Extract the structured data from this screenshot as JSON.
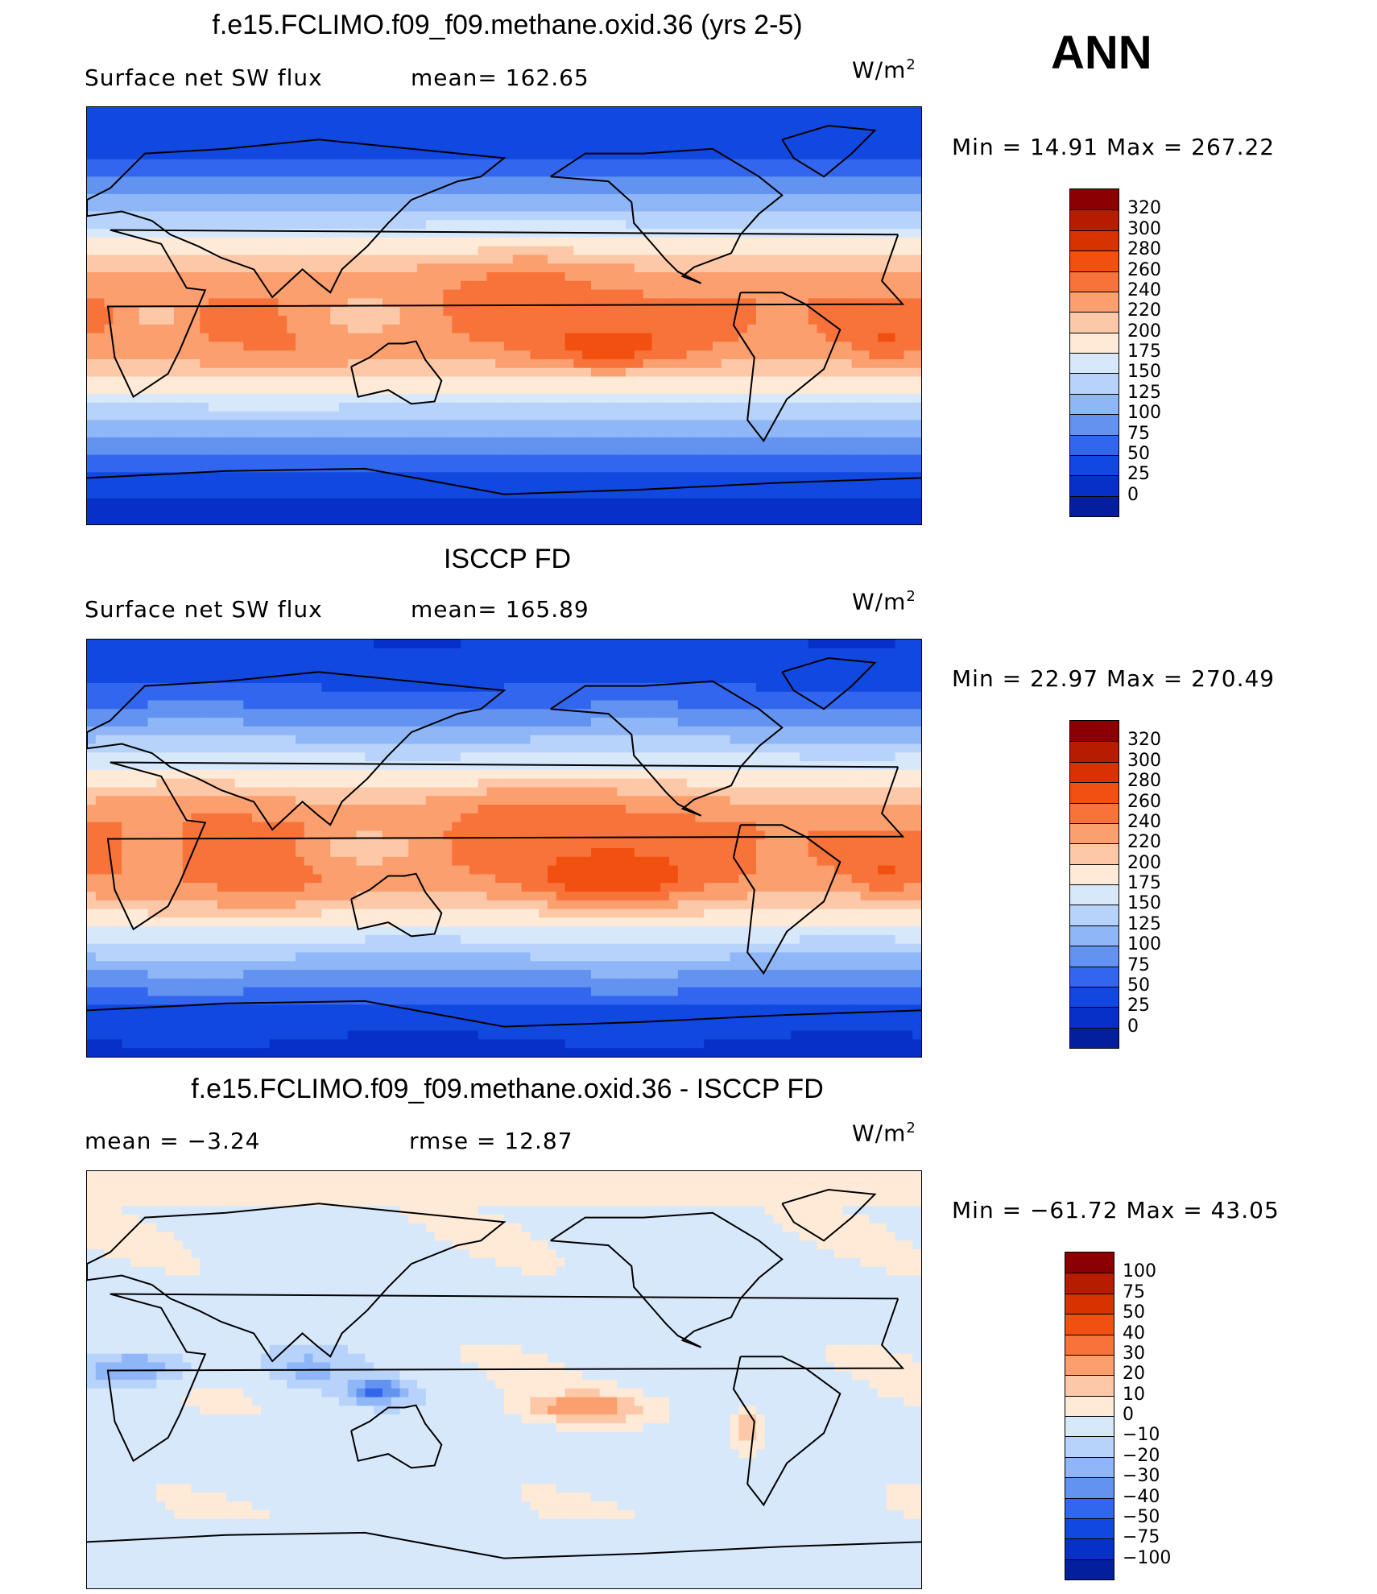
{
  "season": "ANN",
  "panels": [
    {
      "title": "f.e15.FCLIMO.f09_f09.methane.oxid.36 (yrs 2-5)",
      "left_label": "Surface  net  SW  flux",
      "middle_label": "mean=  162.65",
      "units": "W/m",
      "units_sup": "2",
      "minmax": "Min  =    14.91  Max  =  267.22",
      "field": "model",
      "colorbar": {
        "labels": [
          "320",
          "300",
          "280",
          "260",
          "240",
          "220",
          "200",
          "175",
          "150",
          "125",
          "100",
          "75",
          "50",
          "25",
          "0"
        ],
        "colors": [
          "#8b0000",
          "#b71c00",
          "#d83200",
          "#f25010",
          "#f8733a",
          "#fb9f6e",
          "#fdc8a8",
          "#feead6",
          "#d8e8fb",
          "#b7d3fb",
          "#8fb6f7",
          "#6293f0",
          "#3366ee",
          "#1148e0",
          "#0630c8",
          "#041f9c"
        ]
      }
    },
    {
      "title": "ISCCP FD",
      "left_label": "Surface  net  SW  flux",
      "middle_label": "mean=  165.89",
      "units": "W/m",
      "units_sup": "2",
      "minmax": "Min  =    22.97  Max  =  270.49",
      "field": "obs",
      "colorbar": {
        "labels": [
          "320",
          "300",
          "280",
          "260",
          "240",
          "220",
          "200",
          "175",
          "150",
          "125",
          "100",
          "75",
          "50",
          "25",
          "0"
        ],
        "colors": [
          "#8b0000",
          "#b71c00",
          "#d83200",
          "#f25010",
          "#f8733a",
          "#fb9f6e",
          "#fdc8a8",
          "#feead6",
          "#d8e8fb",
          "#b7d3fb",
          "#8fb6f7",
          "#6293f0",
          "#3366ee",
          "#1148e0",
          "#0630c8",
          "#041f9c"
        ]
      }
    },
    {
      "title": "f.e15.FCLIMO.f09_f09.methane.oxid.36 - ISCCP FD",
      "left_label": "mean  =    −3.24",
      "middle_label": "rmse  =    12.87",
      "units": "W/m",
      "units_sup": "2",
      "minmax": "Min  =  −61.72  Max  =    43.05",
      "field": "diff",
      "colorbar": {
        "labels": [
          "100",
          "75",
          "50",
          "40",
          "30",
          "20",
          "10",
          "0",
          "−10",
          "−20",
          "−30",
          "−40",
          "−50",
          "−75",
          "−100"
        ],
        "colors": [
          "#8b0000",
          "#b71c00",
          "#d83200",
          "#f25010",
          "#f8733a",
          "#fb9f6e",
          "#fdc8a8",
          "#feead6",
          "#d8e8fb",
          "#b7d3fb",
          "#8fb6f7",
          "#6293f0",
          "#3366ee",
          "#1148e0",
          "#0630c8",
          "#041f9c"
        ]
      }
    }
  ]
}
